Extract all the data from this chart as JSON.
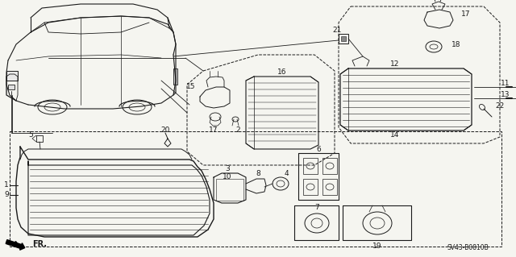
{
  "background_color": "#f5f5f0",
  "diagram_code": "SV43-B0810B",
  "figsize": [
    6.4,
    3.19
  ],
  "dpi": 100,
  "line_color": "#1a1a1a",
  "text_color": "#1a1a1a"
}
